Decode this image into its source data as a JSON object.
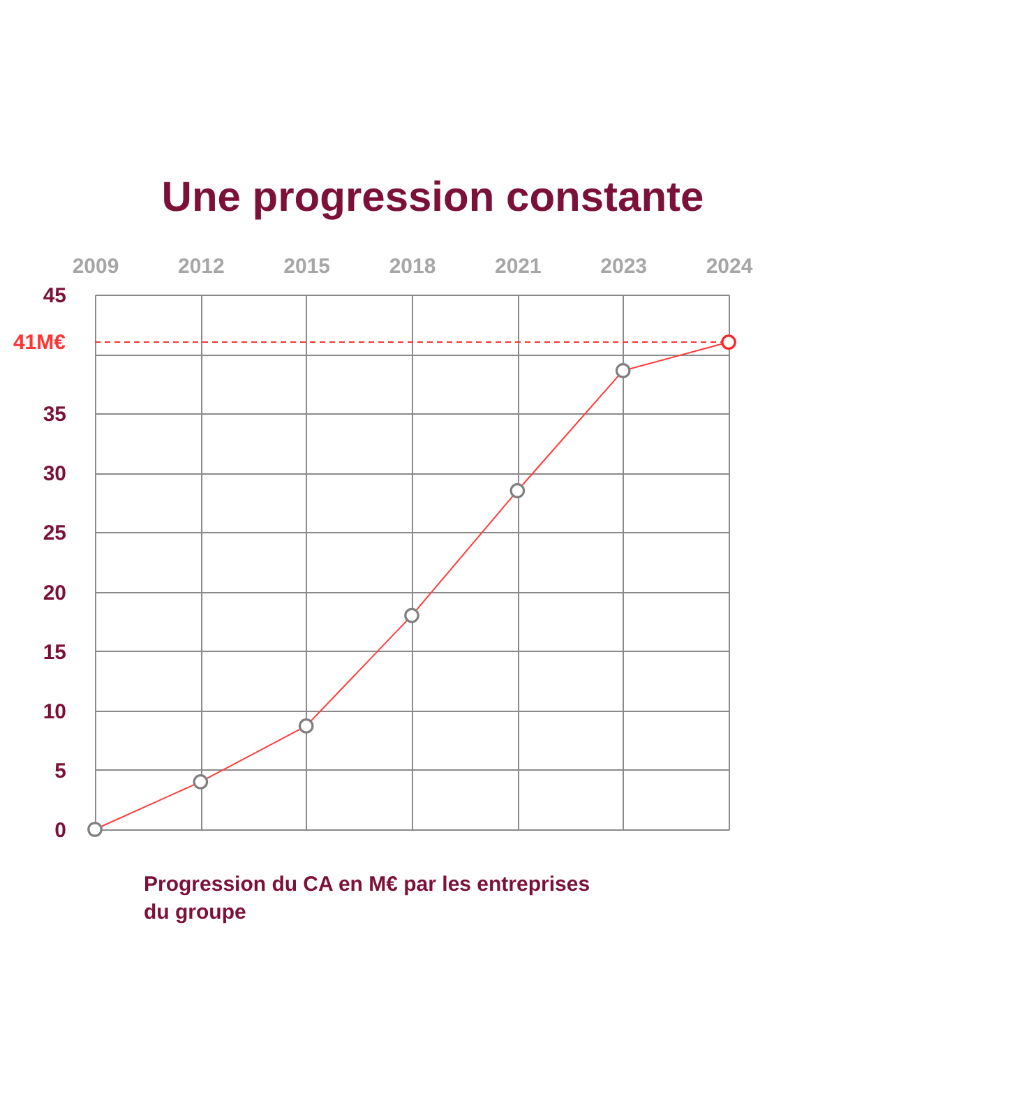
{
  "chart_data": {
    "type": "line",
    "title": "Une progression constante",
    "categories": [
      "2009",
      "2012",
      "2015",
      "2018",
      "2021",
      "2023",
      "2024"
    ],
    "values": [
      0,
      4,
      8.7,
      18,
      28.5,
      38.6,
      41
    ],
    "color": "#ff3b3b",
    "colors": [
      "#7f7f7f",
      "#7f7f7f",
      "#7f7f7f",
      "#7f7f7f",
      "#7f7f7f",
      "#7f7f7f",
      "#ff2020"
    ],
    "marker": "circle",
    "ylim": [
      0,
      45
    ],
    "yticks": [
      0,
      5,
      10,
      15,
      20,
      25,
      30,
      35,
      {
        "value": 40,
        "label": null
      },
      45
    ],
    "grid": true,
    "ref_lines": [
      {
        "axis": "y",
        "value": 41,
        "label": "41M€",
        "color": "#ff3333",
        "line_style": "dashed"
      }
    ],
    "annotations": [
      "Progression du CA en M€ par les entreprises\ndu groupe"
    ]
  }
}
